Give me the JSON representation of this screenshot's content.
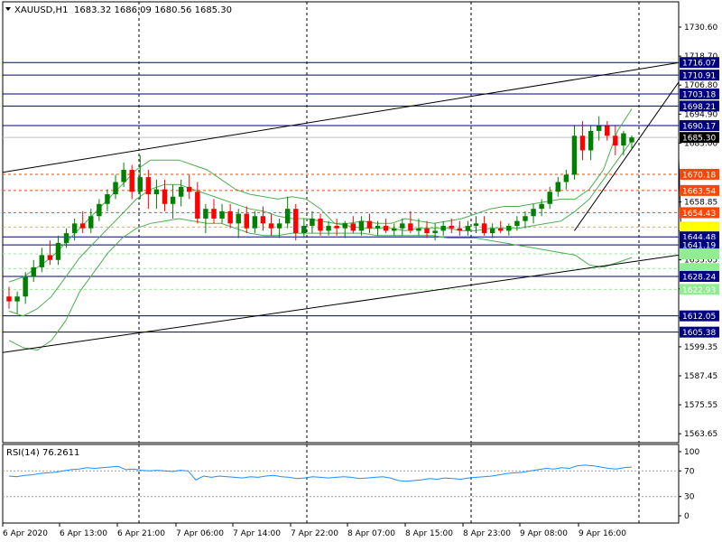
{
  "header": {
    "menu_icon": "triangle-down-icon",
    "symbol": "XAUUSD,H1",
    "ohlc": "1683.32 1686.09 1680.56 1685.30"
  },
  "rsi_header": {
    "label": "RSI(14) 76.2611"
  },
  "colors": {
    "bull": "#008000",
    "bear": "#ff0000",
    "bollinger": "#4caf50",
    "trendline": "#000000",
    "hline": "#000080",
    "resistance_tag": "#ff4500",
    "support_tag": "#000080",
    "yellow_tag": "#ffff00",
    "pale_green_tag": "#90ee90",
    "rsi_line": "#1e90ff",
    "current_price_bg": "#000000"
  },
  "chart_data": [
    {
      "type": "candlestick",
      "title": "XAUUSD,H1",
      "ylim": [
        1560,
        1741
      ],
      "y_ticks": [
        "1730.60",
        "1718.70",
        "1706.80",
        "1694.90",
        "1683.00",
        "1658.85",
        "1647.00",
        "1635.05",
        "1623.15",
        "1611.25",
        "1599.35",
        "1587.45",
        "1575.55",
        "1563.65"
      ],
      "x_tick_labels": [
        "6 Apr 2020",
        "6 Apr 13:00",
        "6 Apr 21:00",
        "7 Apr 06:00",
        "7 Apr 14:00",
        "7 Apr 22:00",
        "8 Apr 07:00",
        "8 Apr 15:00",
        "8 Apr 23:00",
        "9 Apr 08:00",
        "9 Apr 16:00"
      ],
      "price_levels": [
        {
          "value": 1716.07,
          "label": "1716.07",
          "kind": "support"
        },
        {
          "value": 1710.91,
          "label": "1710.91",
          "kind": "support"
        },
        {
          "value": 1703.18,
          "label": "1703.18",
          "kind": "support"
        },
        {
          "value": 1698.21,
          "label": "1698.21",
          "kind": "support"
        },
        {
          "value": 1690.17,
          "label": "1690.17",
          "kind": "support"
        },
        {
          "value": 1685.3,
          "label": "1685.30",
          "kind": "current"
        },
        {
          "value": 1670.18,
          "label": "1670.18",
          "kind": "resistance"
        },
        {
          "value": 1663.54,
          "label": "1663.54",
          "kind": "resistance"
        },
        {
          "value": 1654.43,
          "label": "1654.43",
          "kind": "resistance"
        },
        {
          "value": 1648.5,
          "label": "",
          "kind": "yellow"
        },
        {
          "value": 1644.48,
          "label": "1644.48",
          "kind": "support"
        },
        {
          "value": 1641.19,
          "label": "1641.19",
          "kind": "support"
        },
        {
          "value": 1637.5,
          "label": "",
          "kind": "pale"
        },
        {
          "value": 1631.5,
          "label": "",
          "kind": "pale"
        },
        {
          "value": 1628.24,
          "label": "1628.24",
          "kind": "support"
        },
        {
          "value": 1622.93,
          "label": "1622.93",
          "kind": "pale"
        },
        {
          "value": 1612.05,
          "label": "1612.05",
          "kind": "support"
        },
        {
          "value": 1605.38,
          "label": "1605.38",
          "kind": "support"
        }
      ],
      "candles": [
        [
          1620,
          1624,
          1615,
          1618
        ],
        [
          1618,
          1622,
          1613,
          1620
        ],
        [
          1620,
          1630,
          1617,
          1628
        ],
        [
          1628,
          1635,
          1626,
          1632
        ],
        [
          1632,
          1640,
          1630,
          1637
        ],
        [
          1637,
          1643,
          1633,
          1635
        ],
        [
          1635,
          1645,
          1633,
          1642
        ],
        [
          1642,
          1648,
          1640,
          1646
        ],
        [
          1646,
          1652,
          1643,
          1650
        ],
        [
          1650,
          1655,
          1646,
          1648
        ],
        [
          1648,
          1656,
          1646,
          1653
        ],
        [
          1653,
          1660,
          1651,
          1658
        ],
        [
          1658,
          1664,
          1655,
          1662
        ],
        [
          1662,
          1670,
          1660,
          1667
        ],
        [
          1667,
          1675,
          1665,
          1672
        ],
        [
          1672,
          1674,
          1660,
          1663
        ],
        [
          1663,
          1678,
          1660,
          1669
        ],
        [
          1669,
          1672,
          1656,
          1662
        ],
        [
          1662,
          1668,
          1656,
          1664
        ],
        [
          1664,
          1668,
          1655,
          1658
        ],
        [
          1658,
          1666,
          1652,
          1661
        ],
        [
          1661,
          1668,
          1657,
          1665
        ],
        [
          1665,
          1670,
          1660,
          1663
        ],
        [
          1663,
          1667,
          1650,
          1652
        ],
        [
          1652,
          1658,
          1646,
          1656
        ],
        [
          1656,
          1660,
          1650,
          1652
        ],
        [
          1652,
          1658,
          1650,
          1655
        ],
        [
          1655,
          1658,
          1648,
          1650
        ],
        [
          1650,
          1656,
          1644,
          1654
        ],
        [
          1654,
          1657,
          1646,
          1648
        ],
        [
          1648,
          1655,
          1646,
          1653
        ],
        [
          1653,
          1657,
          1647,
          1650
        ],
        [
          1650,
          1654,
          1645,
          1648
        ],
        [
          1648,
          1652,
          1644,
          1650
        ],
        [
          1650,
          1661,
          1648,
          1656
        ],
        [
          1656,
          1658,
          1643,
          1646
        ],
        [
          1646,
          1652,
          1644,
          1649
        ],
        [
          1649,
          1655,
          1646,
          1652
        ],
        [
          1652,
          1654,
          1645,
          1647
        ],
        [
          1647,
          1651,
          1645,
          1649
        ],
        [
          1649,
          1652,
          1645,
          1648
        ],
        [
          1648,
          1651,
          1644,
          1650
        ],
        [
          1650,
          1653,
          1646,
          1647
        ],
        [
          1647,
          1653,
          1645,
          1651
        ],
        [
          1651,
          1654,
          1646,
          1648
        ],
        [
          1648,
          1651,
          1645,
          1649
        ],
        [
          1649,
          1652,
          1646,
          1647
        ],
        [
          1647,
          1650,
          1645,
          1648
        ],
        [
          1648,
          1652,
          1645,
          1650
        ],
        [
          1650,
          1655,
          1646,
          1647
        ],
        [
          1647,
          1652,
          1645,
          1648
        ],
        [
          1648,
          1651,
          1644,
          1646
        ],
        [
          1646,
          1650,
          1643,
          1647
        ],
        [
          1647,
          1651,
          1645,
          1649
        ],
        [
          1649,
          1652,
          1646,
          1648
        ],
        [
          1648,
          1651,
          1645,
          1647
        ],
        [
          1647,
          1651,
          1645,
          1649
        ],
        [
          1649,
          1653,
          1646,
          1650
        ],
        [
          1650,
          1653,
          1645,
          1646
        ],
        [
          1646,
          1650,
          1644,
          1648
        ],
        [
          1648,
          1651,
          1646,
          1647
        ],
        [
          1647,
          1650,
          1645,
          1649
        ],
        [
          1649,
          1653,
          1647,
          1651
        ],
        [
          1651,
          1655,
          1648,
          1653
        ],
        [
          1653,
          1658,
          1650,
          1656
        ],
        [
          1656,
          1660,
          1653,
          1658
        ],
        [
          1658,
          1665,
          1656,
          1663
        ],
        [
          1663,
          1669,
          1661,
          1667
        ],
        [
          1667,
          1672,
          1664,
          1670
        ],
        [
          1670,
          1690,
          1668,
          1686
        ],
        [
          1686,
          1692,
          1676,
          1680
        ],
        [
          1680,
          1690,
          1676,
          1688
        ],
        [
          1688,
          1694,
          1684,
          1690
        ],
        [
          1690,
          1692,
          1684,
          1686
        ],
        [
          1686,
          1690,
          1678,
          1682
        ],
        [
          1682,
          1688,
          1678,
          1687
        ],
        [
          1683.32,
          1686.09,
          1680.56,
          1685.3
        ]
      ],
      "bollinger_upper": [
        1626,
        1628,
        1632,
        1636,
        1642,
        1648,
        1654,
        1660,
        1666,
        1672,
        1676,
        1676,
        1676,
        1674,
        1672,
        1668,
        1664,
        1662,
        1661,
        1660,
        1661,
        1660,
        1656,
        1650,
        1650,
        1651,
        1650,
        1650,
        1652,
        1651,
        1650,
        1651,
        1652,
        1654,
        1656,
        1657,
        1657,
        1658,
        1659,
        1660,
        1660,
        1664,
        1672,
        1688,
        1697
      ],
      "bollinger_middle": [
        1614,
        1612,
        1615,
        1620,
        1628,
        1636,
        1642,
        1648,
        1654,
        1660,
        1664,
        1666,
        1666,
        1664,
        1662,
        1660,
        1658,
        1656,
        1655,
        1653,
        1652,
        1652,
        1651,
        1650,
        1649,
        1648,
        1648,
        1648,
        1647,
        1648,
        1648,
        1648,
        1647,
        1647,
        1648,
        1648,
        1648,
        1649,
        1650,
        1651,
        1655,
        1660,
        1668,
        1676,
        1684
      ],
      "bollinger_lower": [
        1602,
        1599,
        1598,
        1602,
        1610,
        1622,
        1630,
        1638,
        1644,
        1648,
        1650,
        1651,
        1652,
        1651,
        1650,
        1650,
        1648,
        1646,
        1645,
        1645,
        1646,
        1646,
        1646,
        1646,
        1646,
        1646,
        1645,
        1645,
        1645,
        1645,
        1645,
        1644,
        1644,
        1644,
        1643,
        1642,
        1641,
        1640,
        1639,
        1638,
        1637,
        1633,
        1632,
        1634,
        1636
      ],
      "trendlines": [
        {
          "name": "upper-channel",
          "x0": 0,
          "y0": 1671,
          "x1": 104,
          "y1": 1716
        },
        {
          "name": "lower-channel",
          "x0": 0,
          "y0": 1597,
          "x1": 104,
          "y1": 1637
        },
        {
          "name": "rising-channel-top",
          "x0": 69,
          "y0": 1647,
          "x1": 104,
          "y1": 1708
        },
        {
          "name": "rising-channel-bottom",
          "x0": 82,
          "y0": 1648,
          "x1": 104,
          "y1": 1677
        }
      ]
    },
    {
      "type": "line",
      "title": "RSI(14) 76.2611",
      "ylim": [
        0,
        100
      ],
      "y_ticks": [
        "100",
        "70",
        "30",
        "0"
      ],
      "levels": [
        70,
        30
      ],
      "values": [
        62,
        61,
        63,
        64,
        66,
        67,
        68,
        70,
        72,
        73,
        75,
        74,
        75,
        76,
        77,
        72,
        73,
        71,
        70,
        71,
        70,
        69,
        71,
        70,
        56,
        62,
        60,
        62,
        61,
        60,
        59,
        61,
        60,
        62,
        63,
        61,
        60,
        58,
        59,
        61,
        60,
        59,
        60,
        61,
        60,
        58,
        59,
        60,
        61,
        59,
        55,
        54,
        55,
        56,
        58,
        57,
        59,
        58,
        57,
        59,
        60,
        61,
        62,
        64,
        66,
        67,
        68,
        70,
        72,
        74,
        73,
        75,
        74,
        78,
        79,
        78,
        76,
        74,
        73,
        75,
        76
      ]
    }
  ]
}
